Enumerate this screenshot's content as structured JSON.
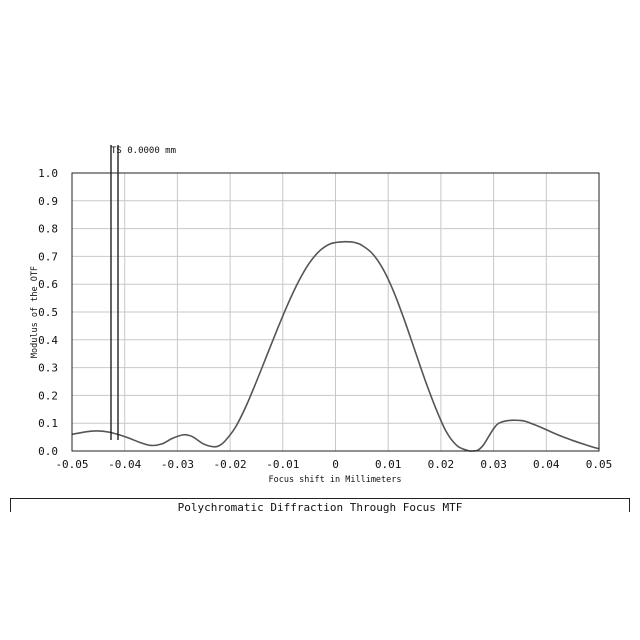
{
  "chart_data": {
    "type": "line",
    "title": "Polychromatic Diffraction Through Focus MTF",
    "xlabel": "Focus shift in Millimeters",
    "ylabel": "Modulus of the OTF",
    "xlim": [
      -0.05,
      0.05
    ],
    "ylim": [
      0.0,
      1.0
    ],
    "grid": true,
    "x_ticks": [
      "-0.05",
      "-0.04",
      "-0.03",
      "-0.02",
      "-0.01",
      "0",
      "0.01",
      "0.02",
      "0.03",
      "0.04",
      "0.05"
    ],
    "y_ticks": [
      "0.0",
      "0.1",
      "0.2",
      "0.3",
      "0.4",
      "0.5",
      "0.6",
      "0.7",
      "0.8",
      "0.9",
      "1.0"
    ],
    "legend": {
      "label": "TS 0.0000 mm",
      "placement": "top-left"
    },
    "series": [
      {
        "color": "#555555",
        "x": [
          -0.05,
          -0.047,
          -0.045,
          -0.043,
          -0.041,
          -0.039,
          -0.037,
          -0.035,
          -0.033,
          -0.031,
          -0.029,
          -0.028,
          -0.027,
          -0.025,
          -0.023,
          -0.022,
          -0.021,
          -0.019,
          -0.017,
          -0.015,
          -0.013,
          -0.011,
          -0.009,
          -0.007,
          -0.005,
          -0.003,
          -0.001,
          0.001,
          0.003,
          0.004,
          0.005,
          0.007,
          0.009,
          0.011,
          0.013,
          0.015,
          0.017,
          0.019,
          0.021,
          0.023,
          0.025,
          0.026,
          0.027,
          0.028,
          0.029,
          0.03,
          0.031,
          0.033,
          0.035,
          0.036,
          0.037,
          0.039,
          0.041,
          0.043,
          0.045,
          0.047,
          0.049,
          0.05
        ],
        "y": [
          0.06,
          0.07,
          0.072,
          0.068,
          0.058,
          0.045,
          0.03,
          0.02,
          0.025,
          0.045,
          0.058,
          0.057,
          0.05,
          0.025,
          0.015,
          0.02,
          0.035,
          0.085,
          0.16,
          0.25,
          0.345,
          0.44,
          0.53,
          0.61,
          0.675,
          0.72,
          0.745,
          0.752,
          0.752,
          0.748,
          0.74,
          0.71,
          0.655,
          0.575,
          0.475,
          0.365,
          0.255,
          0.155,
          0.07,
          0.02,
          0.002,
          0.0,
          0.003,
          0.02,
          0.05,
          0.08,
          0.1,
          0.11,
          0.11,
          0.107,
          0.1,
          0.085,
          0.068,
          0.052,
          0.038,
          0.025,
          0.013,
          0.008
        ]
      }
    ]
  }
}
